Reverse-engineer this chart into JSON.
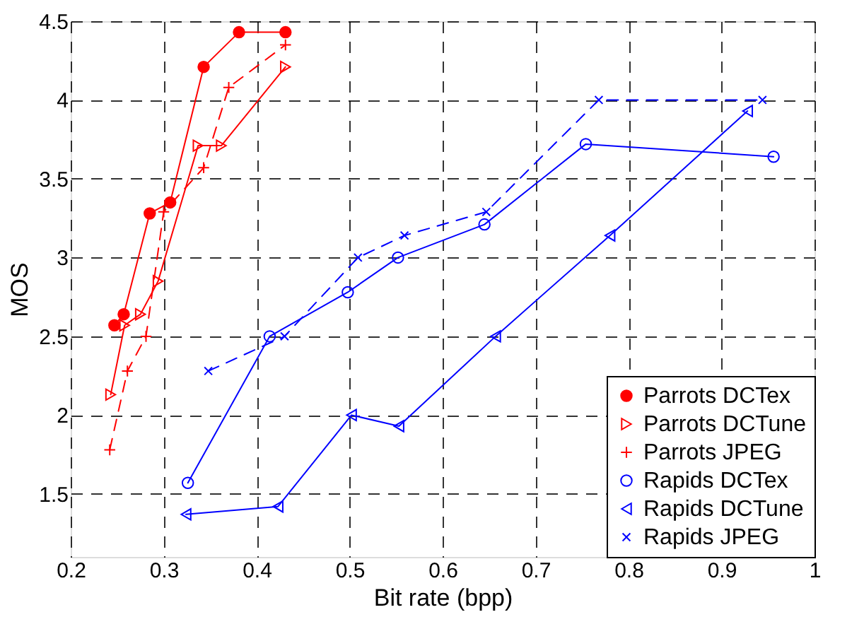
{
  "chart_data": {
    "type": "line",
    "xlabel": "Bit rate (bpp)",
    "ylabel": "MOS",
    "xlim": [
      0.2,
      1
    ],
    "ylim": [
      1.1,
      4.5
    ],
    "xticks": [
      0.2,
      0.3,
      0.4,
      0.5,
      0.6,
      0.7,
      0.8,
      0.9,
      1
    ],
    "yticks": [
      1.5,
      2,
      2.5,
      3,
      3.5,
      4,
      4.5
    ],
    "grid": true,
    "legend": "bottom right",
    "series": [
      {
        "name": "Parrots DCTex",
        "color": "#ff0000",
        "marker": "circle",
        "line_style": "solid",
        "x": [
          0.247,
          0.257,
          0.285,
          0.307,
          0.343,
          0.381,
          0.431
        ],
        "values": [
          2.57,
          2.64,
          3.28,
          3.35,
          4.21,
          4.43,
          4.43
        ]
      },
      {
        "name": "Parrots DCTune",
        "color": "#ff0000",
        "marker": "triangle-right",
        "line_style": "solid",
        "x": [
          0.243,
          0.258,
          0.275,
          0.294,
          0.337,
          0.362,
          0.431
        ],
        "values": [
          2.13,
          2.57,
          2.64,
          2.85,
          3.71,
          3.71,
          4.21
        ]
      },
      {
        "name": "Parrots JPEG",
        "color": "#ff0000",
        "marker": "plus",
        "line_style": "dashed",
        "x": [
          0.242,
          0.261,
          0.281,
          0.3,
          0.343,
          0.37,
          0.431
        ],
        "values": [
          1.78,
          2.28,
          2.5,
          3.29,
          3.57,
          4.08,
          4.35
        ]
      },
      {
        "name": "Rapids DCTex",
        "color": "#0000ff",
        "marker": "circle-open",
        "line_style": "solid",
        "x": [
          0.326,
          0.414,
          0.498,
          0.552,
          0.645,
          0.754,
          0.956
        ],
        "values": [
          1.57,
          2.5,
          2.78,
          3.0,
          3.21,
          3.72,
          3.64
        ]
      },
      {
        "name": "Rapids DCTune",
        "color": "#0000ff",
        "marker": "triangle-left",
        "line_style": "solid",
        "x": [
          0.324,
          0.423,
          0.502,
          0.553,
          0.657,
          0.78,
          0.928
        ],
        "values": [
          1.37,
          1.42,
          2.0,
          1.93,
          2.5,
          3.14,
          3.93
        ]
      },
      {
        "name": "Rapids JPEG",
        "color": "#0000ff",
        "marker": "x",
        "line_style": "dashed",
        "x": [
          0.348,
          0.43,
          0.509,
          0.559,
          0.647,
          0.768,
          0.944
        ],
        "values": [
          2.28,
          2.5,
          3.0,
          3.14,
          3.29,
          4.0,
          4.0
        ]
      }
    ]
  }
}
